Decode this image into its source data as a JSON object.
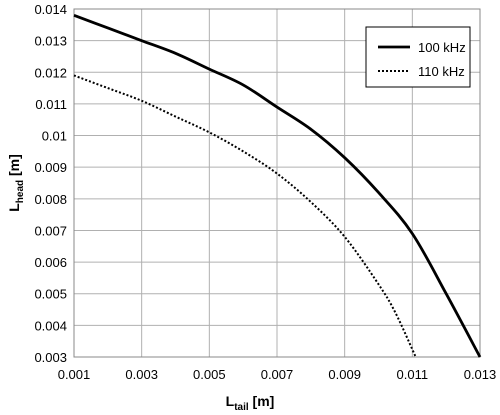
{
  "chart_data": {
    "type": "line",
    "title": "",
    "xlabel": "L",
    "xlabel_sub": "tail",
    "xlabel_unit": " [m]",
    "ylabel": "L",
    "ylabel_sub": "head",
    "ylabel_unit": " [m]",
    "xlim": [
      0.001,
      0.013
    ],
    "ylim": [
      0.003,
      0.014
    ],
    "xticks": [
      "0.001",
      "0.003",
      "0.005",
      "0.007",
      "0.009",
      "0.011",
      "0.013"
    ],
    "yticks": [
      "0.003",
      "0.004",
      "0.005",
      "0.006",
      "0.007",
      "0.008",
      "0.009",
      "0.01",
      "0.011",
      "0.012",
      "0.013",
      "0.014"
    ],
    "grid": true,
    "legend_position": "top-right",
    "series": [
      {
        "name": "100 kHz",
        "style": "solid",
        "x": [
          0.001,
          0.002,
          0.003,
          0.004,
          0.005,
          0.006,
          0.007,
          0.008,
          0.009,
          0.01,
          0.011,
          0.012,
          0.013
        ],
        "y": [
          0.0138,
          0.0134,
          0.013,
          0.0126,
          0.0121,
          0.0116,
          0.0109,
          0.0102,
          0.0093,
          0.0082,
          0.0069,
          0.005,
          0.003
        ]
      },
      {
        "name": "110 kHz",
        "style": "dotted",
        "x": [
          0.001,
          0.002,
          0.003,
          0.004,
          0.005,
          0.006,
          0.007,
          0.008,
          0.009,
          0.01,
          0.0105,
          0.0111
        ],
        "y": [
          0.0119,
          0.0115,
          0.0111,
          0.0106,
          0.0101,
          0.0095,
          0.0088,
          0.0079,
          0.0068,
          0.0053,
          0.0044,
          0.003
        ]
      }
    ]
  }
}
